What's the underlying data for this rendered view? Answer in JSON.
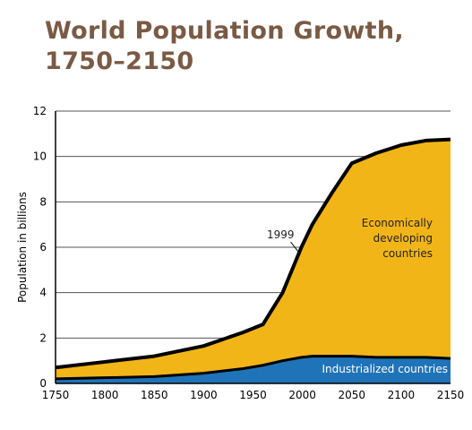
{
  "chart_data": {
    "type": "area",
    "title_line1": "World Population Growth,",
    "title_line2": "1750–2150",
    "ylabel": "Population in billions",
    "xlabel": "",
    "xlim": [
      1750,
      2150
    ],
    "ylim": [
      0,
      12
    ],
    "x_ticks": [
      "1750",
      "1800",
      "1850",
      "1900",
      "1950",
      "2000",
      "2050",
      "2100",
      "2150"
    ],
    "y_ticks": [
      "0",
      "2",
      "4",
      "6",
      "8",
      "10",
      "12"
    ],
    "grid": "horizontal",
    "x": [
      1750,
      1800,
      1850,
      1900,
      1940,
      1960,
      1980,
      1999,
      2010,
      2030,
      2050,
      2075,
      2100,
      2125,
      2150
    ],
    "series": [
      {
        "name": "Industrialized countries",
        "color": "#1f73b8",
        "values": [
          0.2,
          0.25,
          0.3,
          0.45,
          0.65,
          0.8,
          1.0,
          1.15,
          1.2,
          1.2,
          1.2,
          1.15,
          1.15,
          1.15,
          1.1
        ]
      },
      {
        "name": "Economically developing countries",
        "label_lines": [
          "Economically",
          "developing",
          "countries"
        ],
        "color": "#f2b517",
        "values": [
          0.5,
          0.7,
          0.9,
          1.2,
          1.6,
          1.8,
          3.0,
          4.85,
          5.8,
          7.2,
          8.5,
          9.0,
          9.35,
          9.55,
          9.65
        ]
      }
    ],
    "annotations": [
      {
        "text": "1999",
        "x": 1999,
        "y": 6
      }
    ]
  }
}
